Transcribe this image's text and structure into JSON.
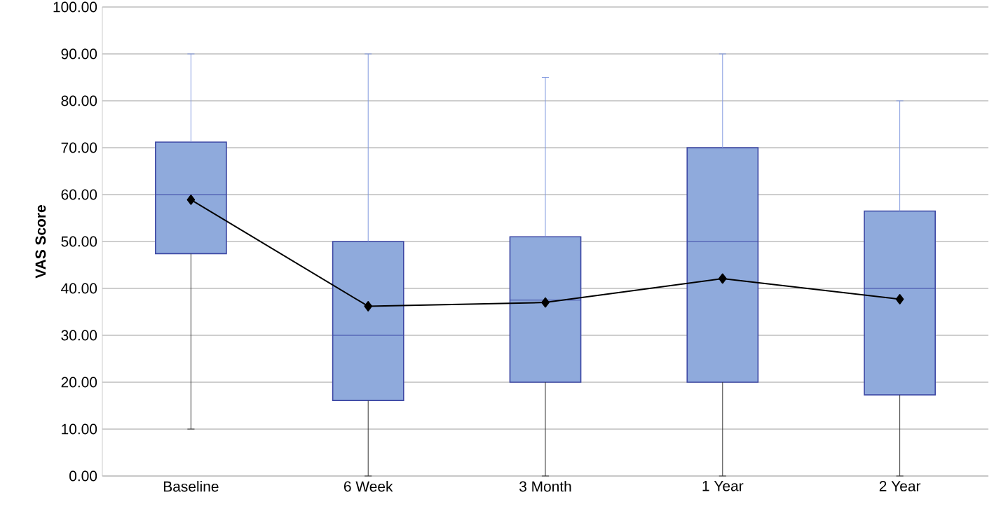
{
  "chart_data": {
    "type": "box",
    "ylabel": "VAS Score",
    "categories": [
      "Baseline",
      "6 Week",
      "3 Month",
      "1 Year",
      "2 Year"
    ],
    "ylim": [
      0,
      100
    ],
    "yticks": [
      {
        "value": 0,
        "label": "0.00"
      },
      {
        "value": 10,
        "label": "10.00"
      },
      {
        "value": 20,
        "label": "20.00"
      },
      {
        "value": 30,
        "label": "30.00"
      },
      {
        "value": 40,
        "label": "40.00"
      },
      {
        "value": 50,
        "label": "50.00"
      },
      {
        "value": 60,
        "label": "60.00"
      },
      {
        "value": 70,
        "label": "70.00"
      },
      {
        "value": 80,
        "label": "80.00"
      },
      {
        "value": 90,
        "label": "90.00"
      },
      {
        "value": 100,
        "label": "100.00"
      }
    ],
    "grid": "y",
    "series": [
      {
        "type": "box",
        "color": "#8faadc",
        "boxes": [
          {
            "low": 10,
            "q1": 47.4,
            "median": 60,
            "q3": 71.2,
            "high": 90
          },
          {
            "low": 0,
            "q1": 16.1,
            "median": 30,
            "q3": 50,
            "high": 90
          },
          {
            "low": 0,
            "q1": 20,
            "median": 37.5,
            "q3": 51,
            "high": 85
          },
          {
            "low": 0,
            "q1": 20,
            "median": 50,
            "q3": 70,
            "high": 90
          },
          {
            "low": 0,
            "q1": 17.3,
            "median": 40,
            "q3": 56.5,
            "high": 80
          }
        ]
      },
      {
        "type": "line",
        "color": "#000000",
        "marker": "diamond",
        "values": [
          58.9,
          36.2,
          37.0,
          42.1,
          37.7
        ]
      }
    ]
  }
}
